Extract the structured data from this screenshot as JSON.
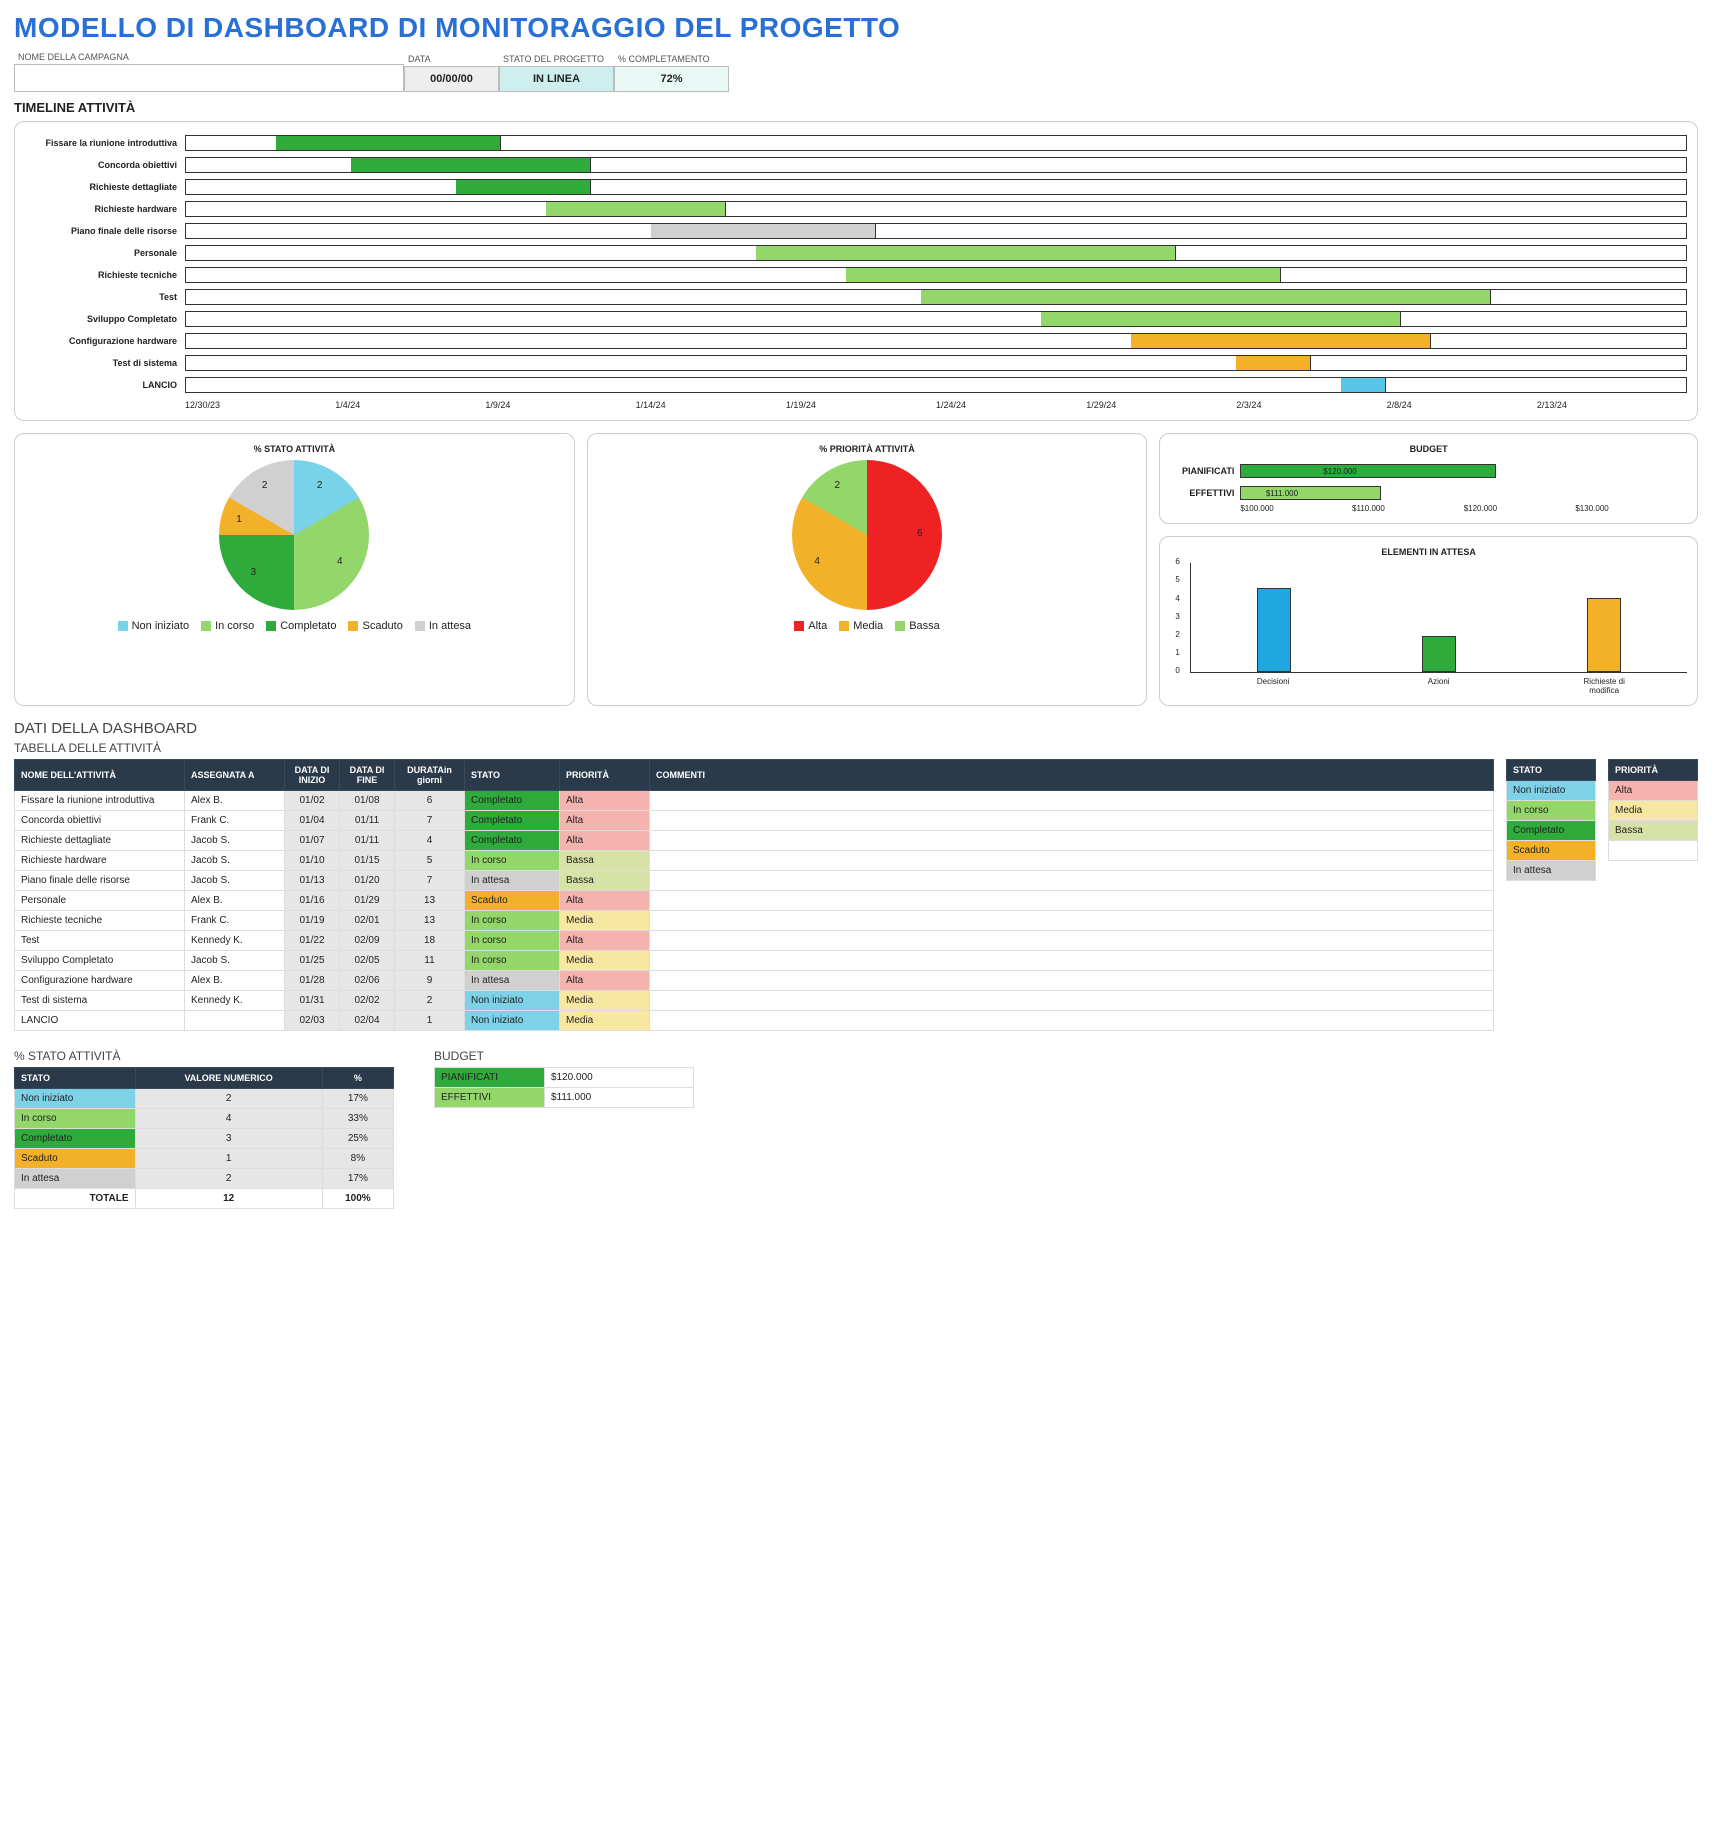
{
  "title": "MODELLO DI DASHBOARD DI MONITORAGGIO DEL PROGETTO",
  "header": {
    "campaign_label": "NOME DELLA CAMPAGNA",
    "campaign_value": "",
    "date_label": "DATA",
    "date_value": "00/00/00",
    "status_label": "STATO DEL PROGETTO",
    "status_value": "IN LINEA",
    "status_bg": "#cfeeee",
    "pct_label": "% COMPLETAMENTO",
    "pct_value": "72%",
    "pct_bg": "#e8f8f4"
  },
  "timeline": {
    "title": "TIMELINE ATTIVITÀ",
    "x_ticks": [
      "12/30/23",
      "1/4/24",
      "1/9/24",
      "1/14/24",
      "1/19/24",
      "1/24/24",
      "1/29/24",
      "2/3/24",
      "2/8/24",
      "2/13/24"
    ],
    "colors": {
      "done": "#2eab3a",
      "progress": "#93d66a",
      "wait": "#d0d0d0",
      "overdue": "#f3b12a",
      "notstarted": "#59c6e8"
    },
    "rows": [
      {
        "label": "Fissare la riunione introduttiva",
        "start": 6,
        "len": 15,
        "color": "#2eab3a"
      },
      {
        "label": "Concorda obiettivi",
        "start": 11,
        "len": 16,
        "color": "#2eab3a"
      },
      {
        "label": "Richieste dettagliate",
        "start": 18,
        "len": 9,
        "color": "#2eab3a"
      },
      {
        "label": "Richieste hardware",
        "start": 24,
        "len": 12,
        "color": "#93d66a"
      },
      {
        "label": "Piano finale delle risorse",
        "start": 31,
        "len": 15,
        "color": "#d0d0d0"
      },
      {
        "label": "Personale",
        "start": 38,
        "len": 28,
        "color": "#93d66a"
      },
      {
        "label": "Richieste tecniche",
        "start": 44,
        "len": 29,
        "color": "#93d66a"
      },
      {
        "label": "Test",
        "start": 49,
        "len": 38,
        "color": "#93d66a"
      },
      {
        "label": "Sviluppo Completato",
        "start": 57,
        "len": 24,
        "color": "#93d66a"
      },
      {
        "label": "Configurazione hardware",
        "start": 63,
        "len": 20,
        "color": "#f3b12a"
      },
      {
        "label": "Test di sistema",
        "start": 70,
        "len": 5,
        "color": "#f3b12a"
      },
      {
        "label": "LANCIO",
        "start": 77,
        "len": 3,
        "color": "#59c6e8"
      }
    ]
  },
  "status_pie": {
    "title": "% STATO ATTIVITÀ",
    "slices": [
      {
        "label": "Non iniziato",
        "value": 2,
        "color": "#78d2e8"
      },
      {
        "label": "In corso",
        "value": 4,
        "color": "#93d66a"
      },
      {
        "label": "Completato",
        "value": 3,
        "color": "#2eab3a"
      },
      {
        "label": "Scaduto",
        "value": 1,
        "color": "#f3b12a"
      },
      {
        "label": "In attesa",
        "value": 2,
        "color": "#d0d0d0"
      }
    ]
  },
  "priority_pie": {
    "title": "% PRIORITÀ ATTIVITÀ",
    "slices": [
      {
        "label": "Alta",
        "value": 6,
        "color": "#e22"
      },
      {
        "label": "Media",
        "value": 4,
        "color": "#f3b12a"
      },
      {
        "label": "Bassa",
        "value": 2,
        "color": "#93d66a"
      }
    ]
  },
  "budget_chart": {
    "title": "BUDGET",
    "min": 100000,
    "max": 135000,
    "ticks": [
      "$100.000",
      "$110.000",
      "$120.000",
      "$130.000"
    ],
    "rows": [
      {
        "label": "PIANIFICATI",
        "value": 120000,
        "text": "$120.000",
        "color": "#2eab3a"
      },
      {
        "label": "EFFETTIVI",
        "value": 111000,
        "text": "$111.000",
        "color": "#93d66a"
      }
    ]
  },
  "pending_chart": {
    "title": "ELEMENTI IN ATTESA",
    "ymax": 6,
    "yticks": [
      0,
      1,
      2,
      3,
      4,
      5,
      6
    ],
    "bars": [
      {
        "label": "Decisioni",
        "value": 4.6,
        "color": "#1fa8df"
      },
      {
        "label": "Azioni",
        "value": 2,
        "color": "#2eab3a"
      },
      {
        "label": "Richieste di modifica",
        "value": 4.1,
        "color": "#f3b12a"
      }
    ]
  },
  "dashboard_data_title": "DATI DELLA DASHBOARD",
  "task_table": {
    "title": "TABELLA DELLE ATTIVITÀ",
    "cols": [
      "NOME DELL'ATTIVITÀ",
      "ASSEGNATA A",
      "DATA DI INIZIO",
      "DATA DI FINE",
      "DURATA",
      "STATO",
      "PRIORITÀ",
      "COMMENTI"
    ],
    "durata_sub": "in giorni",
    "rows": [
      {
        "name": "Fissare la riunione introduttiva",
        "assignee": "Alex B.",
        "start": "01/02",
        "end": "01/08",
        "dur": "6",
        "status": "Completato",
        "priority": "Alta",
        "comment": ""
      },
      {
        "name": "Concorda obiettivi",
        "assignee": "Frank C.",
        "start": "01/04",
        "end": "01/11",
        "dur": "7",
        "status": "Completato",
        "priority": "Alta",
        "comment": ""
      },
      {
        "name": "Richieste dettagliate",
        "assignee": "Jacob S.",
        "start": "01/07",
        "end": "01/11",
        "dur": "4",
        "status": "Completato",
        "priority": "Alta",
        "comment": ""
      },
      {
        "name": "Richieste hardware",
        "assignee": "Jacob S.",
        "start": "01/10",
        "end": "01/15",
        "dur": "5",
        "status": "In corso",
        "priority": "Bassa",
        "comment": ""
      },
      {
        "name": "Piano finale delle risorse",
        "assignee": "Jacob S.",
        "start": "01/13",
        "end": "01/20",
        "dur": "7",
        "status": "In attesa",
        "priority": "Bassa",
        "comment": ""
      },
      {
        "name": "Personale",
        "assignee": "Alex B.",
        "start": "01/16",
        "end": "01/29",
        "dur": "13",
        "status": "Scaduto",
        "priority": "Alta",
        "comment": ""
      },
      {
        "name": "Richieste tecniche",
        "assignee": "Frank C.",
        "start": "01/19",
        "end": "02/01",
        "dur": "13",
        "status": "In corso",
        "priority": "Media",
        "comment": ""
      },
      {
        "name": "Test",
        "assignee": "Kennedy K.",
        "start": "01/22",
        "end": "02/09",
        "dur": "18",
        "status": "In corso",
        "priority": "Alta",
        "comment": ""
      },
      {
        "name": "Sviluppo Completato",
        "assignee": "Jacob S.",
        "start": "01/25",
        "end": "02/05",
        "dur": "11",
        "status": "In corso",
        "priority": "Media",
        "comment": ""
      },
      {
        "name": "Configurazione hardware",
        "assignee": "Alex B.",
        "start": "01/28",
        "end": "02/06",
        "dur": "9",
        "status": "In attesa",
        "priority": "Alta",
        "comment": ""
      },
      {
        "name": "Test di sistema",
        "assignee": "Kennedy K.",
        "start": "01/31",
        "end": "02/02",
        "dur": "2",
        "status": "Non iniziato",
        "priority": "Media",
        "comment": ""
      },
      {
        "name": "LANCIO",
        "assignee": "",
        "start": "02/03",
        "end": "02/04",
        "dur": "1",
        "status": "Non iniziato",
        "priority": "Media",
        "comment": ""
      }
    ]
  },
  "status_colors": {
    "Non iniziato": "#7dd2e8",
    "In corso": "#93d66a",
    "Completato": "#2eab3a",
    "Scaduto": "#f3b12a",
    "In attesa": "#d0d0d0"
  },
  "priority_colors": {
    "Alta": "#f4b3ae",
    "Media": "#f7e7a0",
    "Bassa": "#d6e2a6"
  },
  "legend_tables": {
    "stato_title": "STATO",
    "stato": [
      "Non iniziato",
      "In corso",
      "Completato",
      "Scaduto",
      "In attesa"
    ],
    "prio_title": "PRIORITÀ",
    "prio": [
      "Alta",
      "Media",
      "Bassa"
    ]
  },
  "status_summary": {
    "title": "% STATO ATTIVITÀ",
    "cols": [
      "STATO",
      "VALORE NUMERICO",
      "%"
    ],
    "rows": [
      {
        "label": "Non iniziato",
        "num": "2",
        "pct": "17%"
      },
      {
        "label": "In corso",
        "num": "4",
        "pct": "33%"
      },
      {
        "label": "Completato",
        "num": "3",
        "pct": "25%"
      },
      {
        "label": "Scaduto",
        "num": "1",
        "pct": "8%"
      },
      {
        "label": "In attesa",
        "num": "2",
        "pct": "17%"
      }
    ],
    "total_label": "TOTALE",
    "total_num": "12",
    "total_pct": "100%"
  },
  "budget_table": {
    "title": "BUDGET",
    "rows": [
      {
        "label": "PIANIFICATI",
        "value": "$120.000",
        "color": "#2eab3a"
      },
      {
        "label": "EFFETTIVI",
        "value": "$111.000",
        "color": "#93d66a"
      }
    ]
  }
}
